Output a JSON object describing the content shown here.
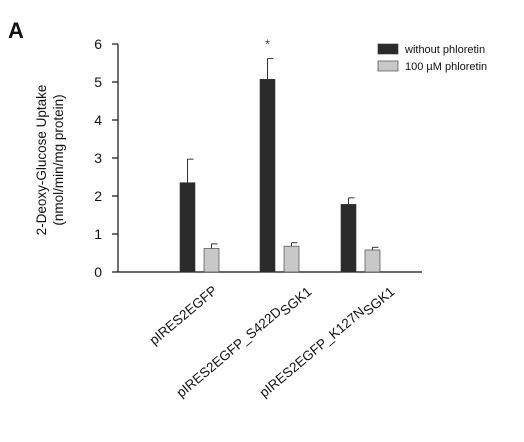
{
  "chart_data": {
    "type": "bar",
    "panel_label": "A",
    "ylabel_line1": "2-Deoxy-Glucose Uptake",
    "ylabel_line2": "(nmol/min/mg protein)",
    "ylim": [
      0,
      6
    ],
    "yticks": [
      "0",
      "1",
      "2",
      "3",
      "4",
      "5",
      "6"
    ],
    "grid": false,
    "legend_position": "top-right",
    "categories": [
      {
        "main": "pIRES2EGFP",
        "sub": ""
      },
      {
        "main": "pIRES2EGFP_S422D",
        "sub": "SGK1"
      },
      {
        "main": "pIRES2EGFP_K127N",
        "sub": "SGK1"
      }
    ],
    "series": [
      {
        "name": "without phloretin",
        "color": "#2b2b2b",
        "values": [
          2.35,
          5.07,
          1.78
        ],
        "errors": [
          0.62,
          0.55,
          0.17
        ]
      },
      {
        "name": "100 µM phloretin",
        "color": "#c8c8c8",
        "values": [
          0.62,
          0.68,
          0.58
        ],
        "errors": [
          0.12,
          0.09,
          0.07
        ]
      }
    ],
    "annotations": [
      {
        "text": "*",
        "category_index": 1,
        "series_index": 0
      }
    ]
  }
}
